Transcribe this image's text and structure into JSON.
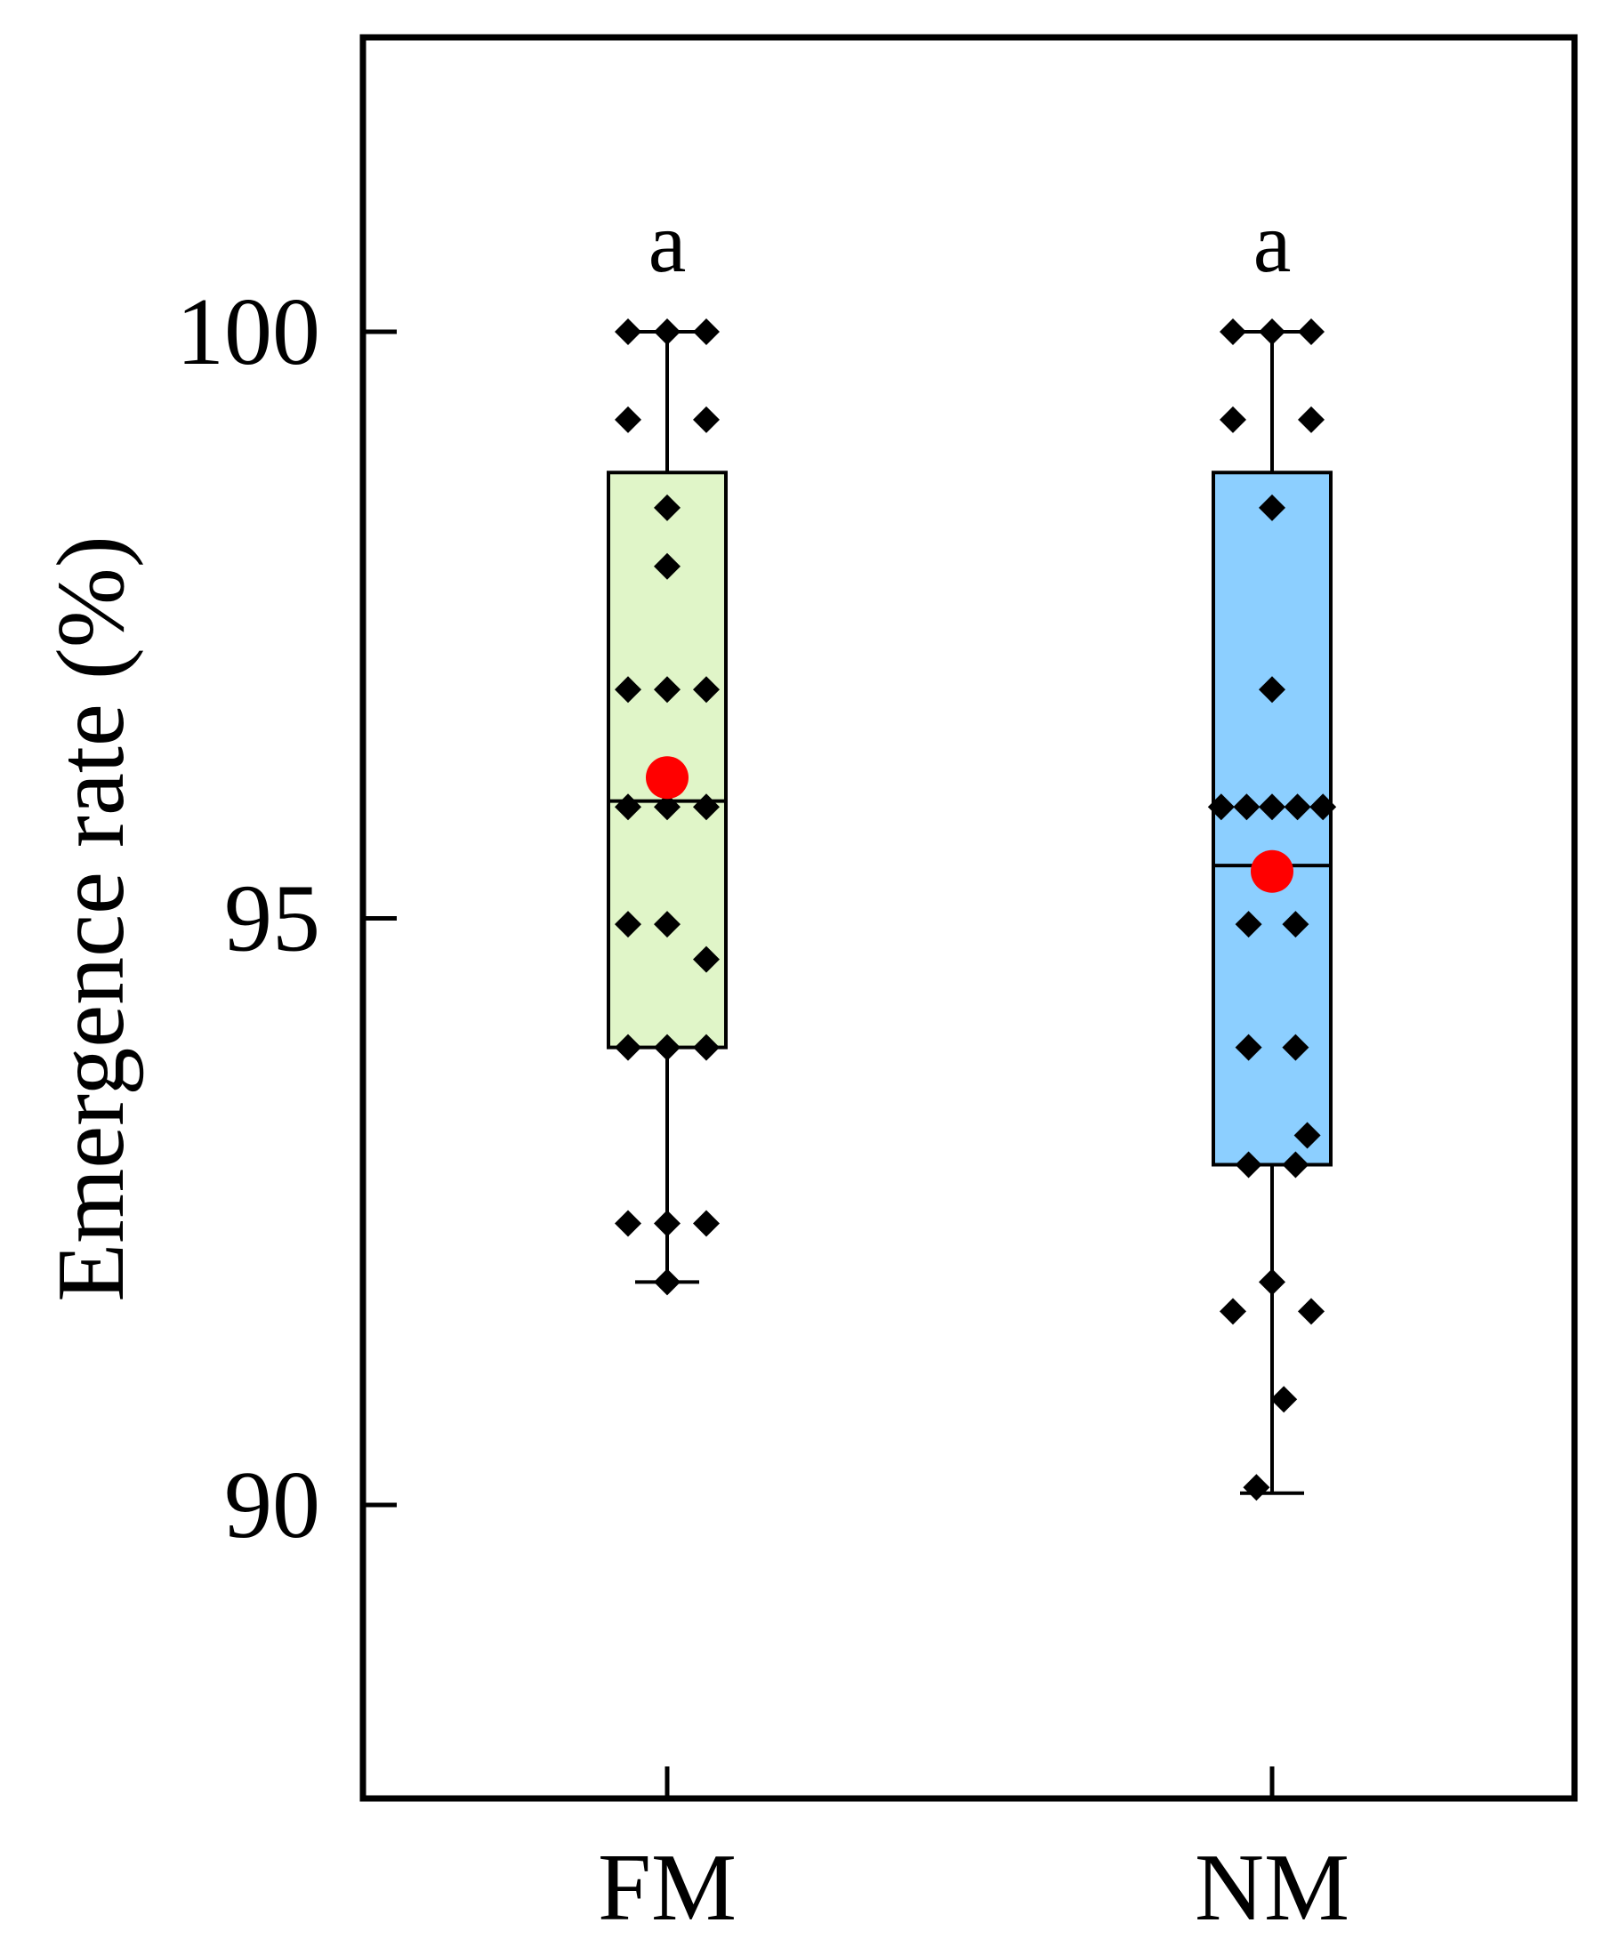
{
  "chart_data": {
    "type": "boxplot",
    "ylabel": "Emergence rate (%)",
    "xlabel": "",
    "ylim": [
      87.5,
      102.5
    ],
    "yticks": [
      90,
      95,
      100
    ],
    "grid": false,
    "categories": [
      "FM",
      "NM"
    ],
    "groups": [
      {
        "name": "FM",
        "fill": "#e0f5c8",
        "box": {
          "q1": 93.9,
          "median": 96.0,
          "q3": 98.8,
          "whisker_low": 91.9,
          "whisker_high": 100.0
        },
        "mean": 96.2,
        "significance": "a",
        "points": [
          {
            "y": 100.0,
            "dx": -1
          },
          {
            "y": 100.0,
            "dx": 0
          },
          {
            "y": 100.0,
            "dx": 1
          },
          {
            "y": 99.25,
            "dx": -1
          },
          {
            "y": 99.25,
            "dx": 1
          },
          {
            "y": 98.5,
            "dx": 0
          },
          {
            "y": 98.0,
            "dx": 0
          },
          {
            "y": 96.95,
            "dx": -1
          },
          {
            "y": 96.95,
            "dx": 0
          },
          {
            "y": 96.95,
            "dx": 1
          },
          {
            "y": 95.95,
            "dx": -1
          },
          {
            "y": 95.95,
            "dx": 0
          },
          {
            "y": 95.95,
            "dx": 1
          },
          {
            "y": 94.95,
            "dx": -1
          },
          {
            "y": 94.95,
            "dx": 0
          },
          {
            "y": 94.65,
            "dx": 1
          },
          {
            "y": 93.9,
            "dx": -1
          },
          {
            "y": 93.9,
            "dx": 0
          },
          {
            "y": 93.9,
            "dx": 1
          },
          {
            "y": 92.4,
            "dx": -1
          },
          {
            "y": 92.4,
            "dx": 0
          },
          {
            "y": 92.4,
            "dx": 1
          },
          {
            "y": 91.9,
            "dx": 0
          }
        ]
      },
      {
        "name": "NM",
        "fill": "#8ccfff",
        "box": {
          "q1": 92.9,
          "median": 95.45,
          "q3": 98.8,
          "whisker_low": 90.1,
          "whisker_high": 100.0
        },
        "mean": 95.4,
        "significance": "a",
        "points": [
          {
            "y": 100.0,
            "dx": -1
          },
          {
            "y": 100.0,
            "dx": 0
          },
          {
            "y": 100.0,
            "dx": 1
          },
          {
            "y": 99.25,
            "dx": -1
          },
          {
            "y": 99.25,
            "dx": 1
          },
          {
            "y": 98.5,
            "dx": 0
          },
          {
            "y": 96.95,
            "dx": 0
          },
          {
            "y": 95.95,
            "dx": -1.3
          },
          {
            "y": 95.95,
            "dx": -0.65
          },
          {
            "y": 95.95,
            "dx": 0
          },
          {
            "y": 95.95,
            "dx": 0.65
          },
          {
            "y": 95.95,
            "dx": 1.3
          },
          {
            "y": 94.95,
            "dx": -0.6
          },
          {
            "y": 94.95,
            "dx": 0.6
          },
          {
            "y": 93.9,
            "dx": -0.6
          },
          {
            "y": 93.9,
            "dx": 0.6
          },
          {
            "y": 93.15,
            "dx": 0.9
          },
          {
            "y": 92.9,
            "dx": -0.6
          },
          {
            "y": 92.9,
            "dx": 0.6
          },
          {
            "y": 91.9,
            "dx": 0
          },
          {
            "y": 91.65,
            "dx": -1
          },
          {
            "y": 91.65,
            "dx": 1
          },
          {
            "y": 90.9,
            "dx": 0.3
          },
          {
            "y": 90.15,
            "dx": -0.4
          }
        ]
      }
    ]
  }
}
